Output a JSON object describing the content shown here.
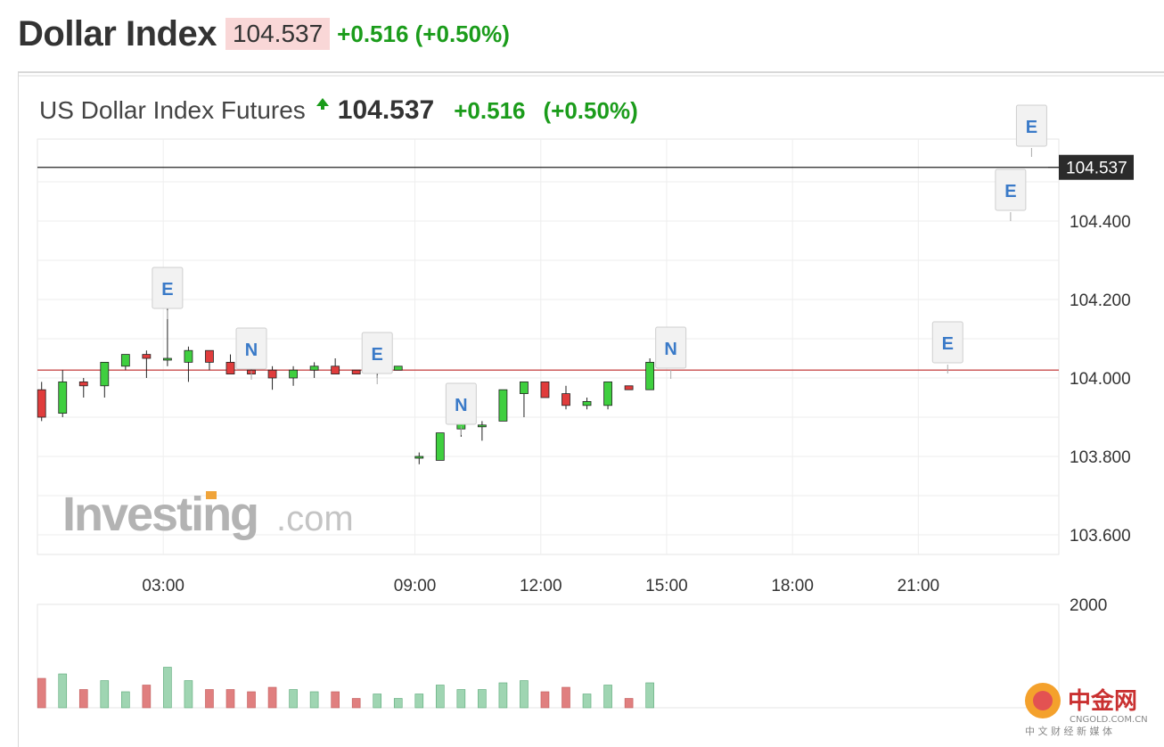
{
  "header": {
    "title": "Dollar Index",
    "price": "104.537",
    "change": "+0.516 (+0.50%)"
  },
  "chart_header": {
    "name": "US Dollar Index Futures",
    "price": "104.537",
    "change": "+0.516",
    "change_pct": "(+0.50%)"
  },
  "watermark": {
    "brand": "Investing",
    "suffix": ".com"
  },
  "corner_logo": {
    "name": "中金网",
    "domain": "CNGOLD.COM.CN",
    "tagline": "中 文 财 经 新 媒 体"
  },
  "colors": {
    "up": "#3fcf3f",
    "down": "#e03c3c",
    "volume_up": "#9fd5b2",
    "volume_down": "#e07f7f",
    "reference_line": "#c84d4d",
    "current_line": "#222222"
  },
  "chart_data": {
    "type": "candlestick",
    "title": "",
    "price_axis": {
      "ticks": [
        "104.400",
        "104.200",
        "104.000",
        "103.800",
        "103.600"
      ],
      "range": [
        103.55,
        104.6
      ],
      "grid": true
    },
    "time_axis": {
      "ticks": [
        "03:00",
        "09:00",
        "12:00",
        "15:00",
        "18:00",
        "21:00"
      ],
      "tick_hours": [
        3,
        9,
        12,
        15,
        18,
        21
      ],
      "range_hours": [
        0,
        24.35
      ]
    },
    "current_price": 104.537,
    "current_price_label": "104.537",
    "reference_price": 104.02,
    "candles": [
      {
        "t": 0.1,
        "o": 103.97,
        "h": 103.99,
        "l": 103.89,
        "c": 103.9
      },
      {
        "t": 0.6,
        "o": 103.91,
        "h": 104.02,
        "l": 103.9,
        "c": 103.99
      },
      {
        "t": 1.1,
        "o": 103.99,
        "h": 104.0,
        "l": 103.95,
        "c": 103.98
      },
      {
        "t": 1.6,
        "o": 103.98,
        "h": 104.04,
        "l": 103.95,
        "c": 104.04
      },
      {
        "t": 2.1,
        "o": 104.03,
        "h": 104.06,
        "l": 104.02,
        "c": 104.06
      },
      {
        "t": 2.6,
        "o": 104.06,
        "h": 104.07,
        "l": 104.0,
        "c": 104.05
      },
      {
        "t": 3.1,
        "o": 104.05,
        "h": 104.18,
        "l": 104.03,
        "c": 104.05
      },
      {
        "t": 3.6,
        "o": 104.04,
        "h": 104.08,
        "l": 103.99,
        "c": 104.07
      },
      {
        "t": 4.1,
        "o": 104.07,
        "h": 104.07,
        "l": 104.02,
        "c": 104.04
      },
      {
        "t": 4.6,
        "o": 104.04,
        "h": 104.06,
        "l": 104.01,
        "c": 104.01
      },
      {
        "t": 5.1,
        "o": 104.02,
        "h": 104.04,
        "l": 104.0,
        "c": 104.01
      },
      {
        "t": 5.6,
        "o": 104.02,
        "h": 104.03,
        "l": 103.97,
        "c": 104.0
      },
      {
        "t": 6.1,
        "o": 104.0,
        "h": 104.03,
        "l": 103.98,
        "c": 104.02
      },
      {
        "t": 6.6,
        "o": 104.02,
        "h": 104.04,
        "l": 104.0,
        "c": 104.03
      },
      {
        "t": 7.1,
        "o": 104.03,
        "h": 104.05,
        "l": 104.01,
        "c": 104.01
      },
      {
        "t": 7.6,
        "o": 104.02,
        "h": 104.02,
        "l": 104.01,
        "c": 104.01
      },
      {
        "t": 8.1,
        "o": 104.02,
        "h": 104.03,
        "l": 104.0,
        "c": 104.02
      },
      {
        "t": 8.6,
        "o": 104.02,
        "h": 104.03,
        "l": 104.02,
        "c": 104.03
      },
      {
        "t": 9.1,
        "o": 103.8,
        "h": 103.81,
        "l": 103.78,
        "c": 103.8
      },
      {
        "t": 9.6,
        "o": 103.79,
        "h": 103.86,
        "l": 103.79,
        "c": 103.86
      },
      {
        "t": 10.1,
        "o": 103.87,
        "h": 103.9,
        "l": 103.85,
        "c": 103.89
      },
      {
        "t": 10.6,
        "o": 103.88,
        "h": 103.89,
        "l": 103.84,
        "c": 103.88
      },
      {
        "t": 11.1,
        "o": 103.89,
        "h": 103.97,
        "l": 103.89,
        "c": 103.97
      },
      {
        "t": 11.6,
        "o": 103.96,
        "h": 103.99,
        "l": 103.9,
        "c": 103.99
      },
      {
        "t": 12.1,
        "o": 103.99,
        "h": 103.99,
        "l": 103.95,
        "c": 103.95
      },
      {
        "t": 12.6,
        "o": 103.96,
        "h": 103.98,
        "l": 103.92,
        "c": 103.93
      },
      {
        "t": 13.1,
        "o": 103.93,
        "h": 103.95,
        "l": 103.92,
        "c": 103.94
      },
      {
        "t": 13.6,
        "o": 103.93,
        "h": 103.99,
        "l": 103.92,
        "c": 103.99
      },
      {
        "t": 14.1,
        "o": 103.98,
        "h": 103.98,
        "l": 103.97,
        "c": 103.97
      },
      {
        "t": 14.6,
        "o": 103.97,
        "h": 104.05,
        "l": 103.97,
        "c": 104.04
      }
    ]
  }
}
